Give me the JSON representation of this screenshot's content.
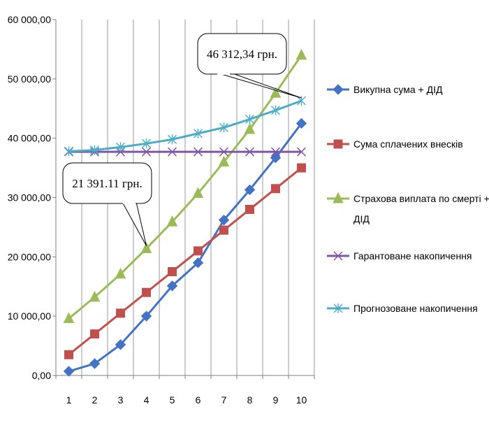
{
  "chart_data": {
    "type": "line",
    "x": [
      1,
      2,
      3,
      4,
      5,
      6,
      7,
      8,
      9,
      10
    ],
    "ylim": [
      0,
      60000
    ],
    "yticks": [
      0,
      10000,
      20000,
      30000,
      40000,
      50000,
      60000
    ],
    "ytick_labels": [
      "0,00",
      "10 000,00",
      "20 000,00",
      "30 000,00",
      "40 000,00",
      "50 000,00",
      "60 000,00"
    ],
    "xtick_labels": [
      "1",
      "2",
      "3",
      "4",
      "5",
      "6",
      "7",
      "8",
      "9",
      "10"
    ],
    "grid": "vertical",
    "legend_position": "right",
    "series": [
      {
        "name": "Викупна сума + ДІД",
        "color": "#4472C4",
        "marker": "diamond",
        "values": [
          700,
          2000,
          5200,
          10000,
          15100,
          19000,
          26200,
          31300,
          36700,
          42500
        ]
      },
      {
        "name": "Сума сплачених внесків",
        "color": "#C0504D",
        "marker": "square",
        "values": [
          3500,
          7000,
          10500,
          14000,
          17500,
          21000,
          24500,
          28000,
          31500,
          35000
        ]
      },
      {
        "name": "Страхова виплата по смерті + ДІД",
        "color": "#9BBB59",
        "marker": "triangle",
        "values": [
          9600,
          13200,
          17100,
          21391.11,
          25900,
          30700,
          36000,
          41500,
          47600,
          54000
        ]
      },
      {
        "name": "Гарантоване накопичення",
        "color": "#7E57A8",
        "marker": "x",
        "values": [
          37700,
          37700,
          37700,
          37700,
          37700,
          37700,
          37700,
          37700,
          37700,
          37700
        ]
      },
      {
        "name": "Прогнозоване накопичення",
        "color": "#4BACC6",
        "marker": "star",
        "values": [
          37800,
          38000,
          38500,
          39100,
          39800,
          40800,
          41800,
          43200,
          44700,
          46312.34
        ]
      }
    ],
    "annotations": [
      {
        "text": "46 312,34 грн.",
        "series": 4,
        "point": 10
      },
      {
        "text": "21 391.11 грн.",
        "series": 2,
        "point": 4
      }
    ]
  }
}
